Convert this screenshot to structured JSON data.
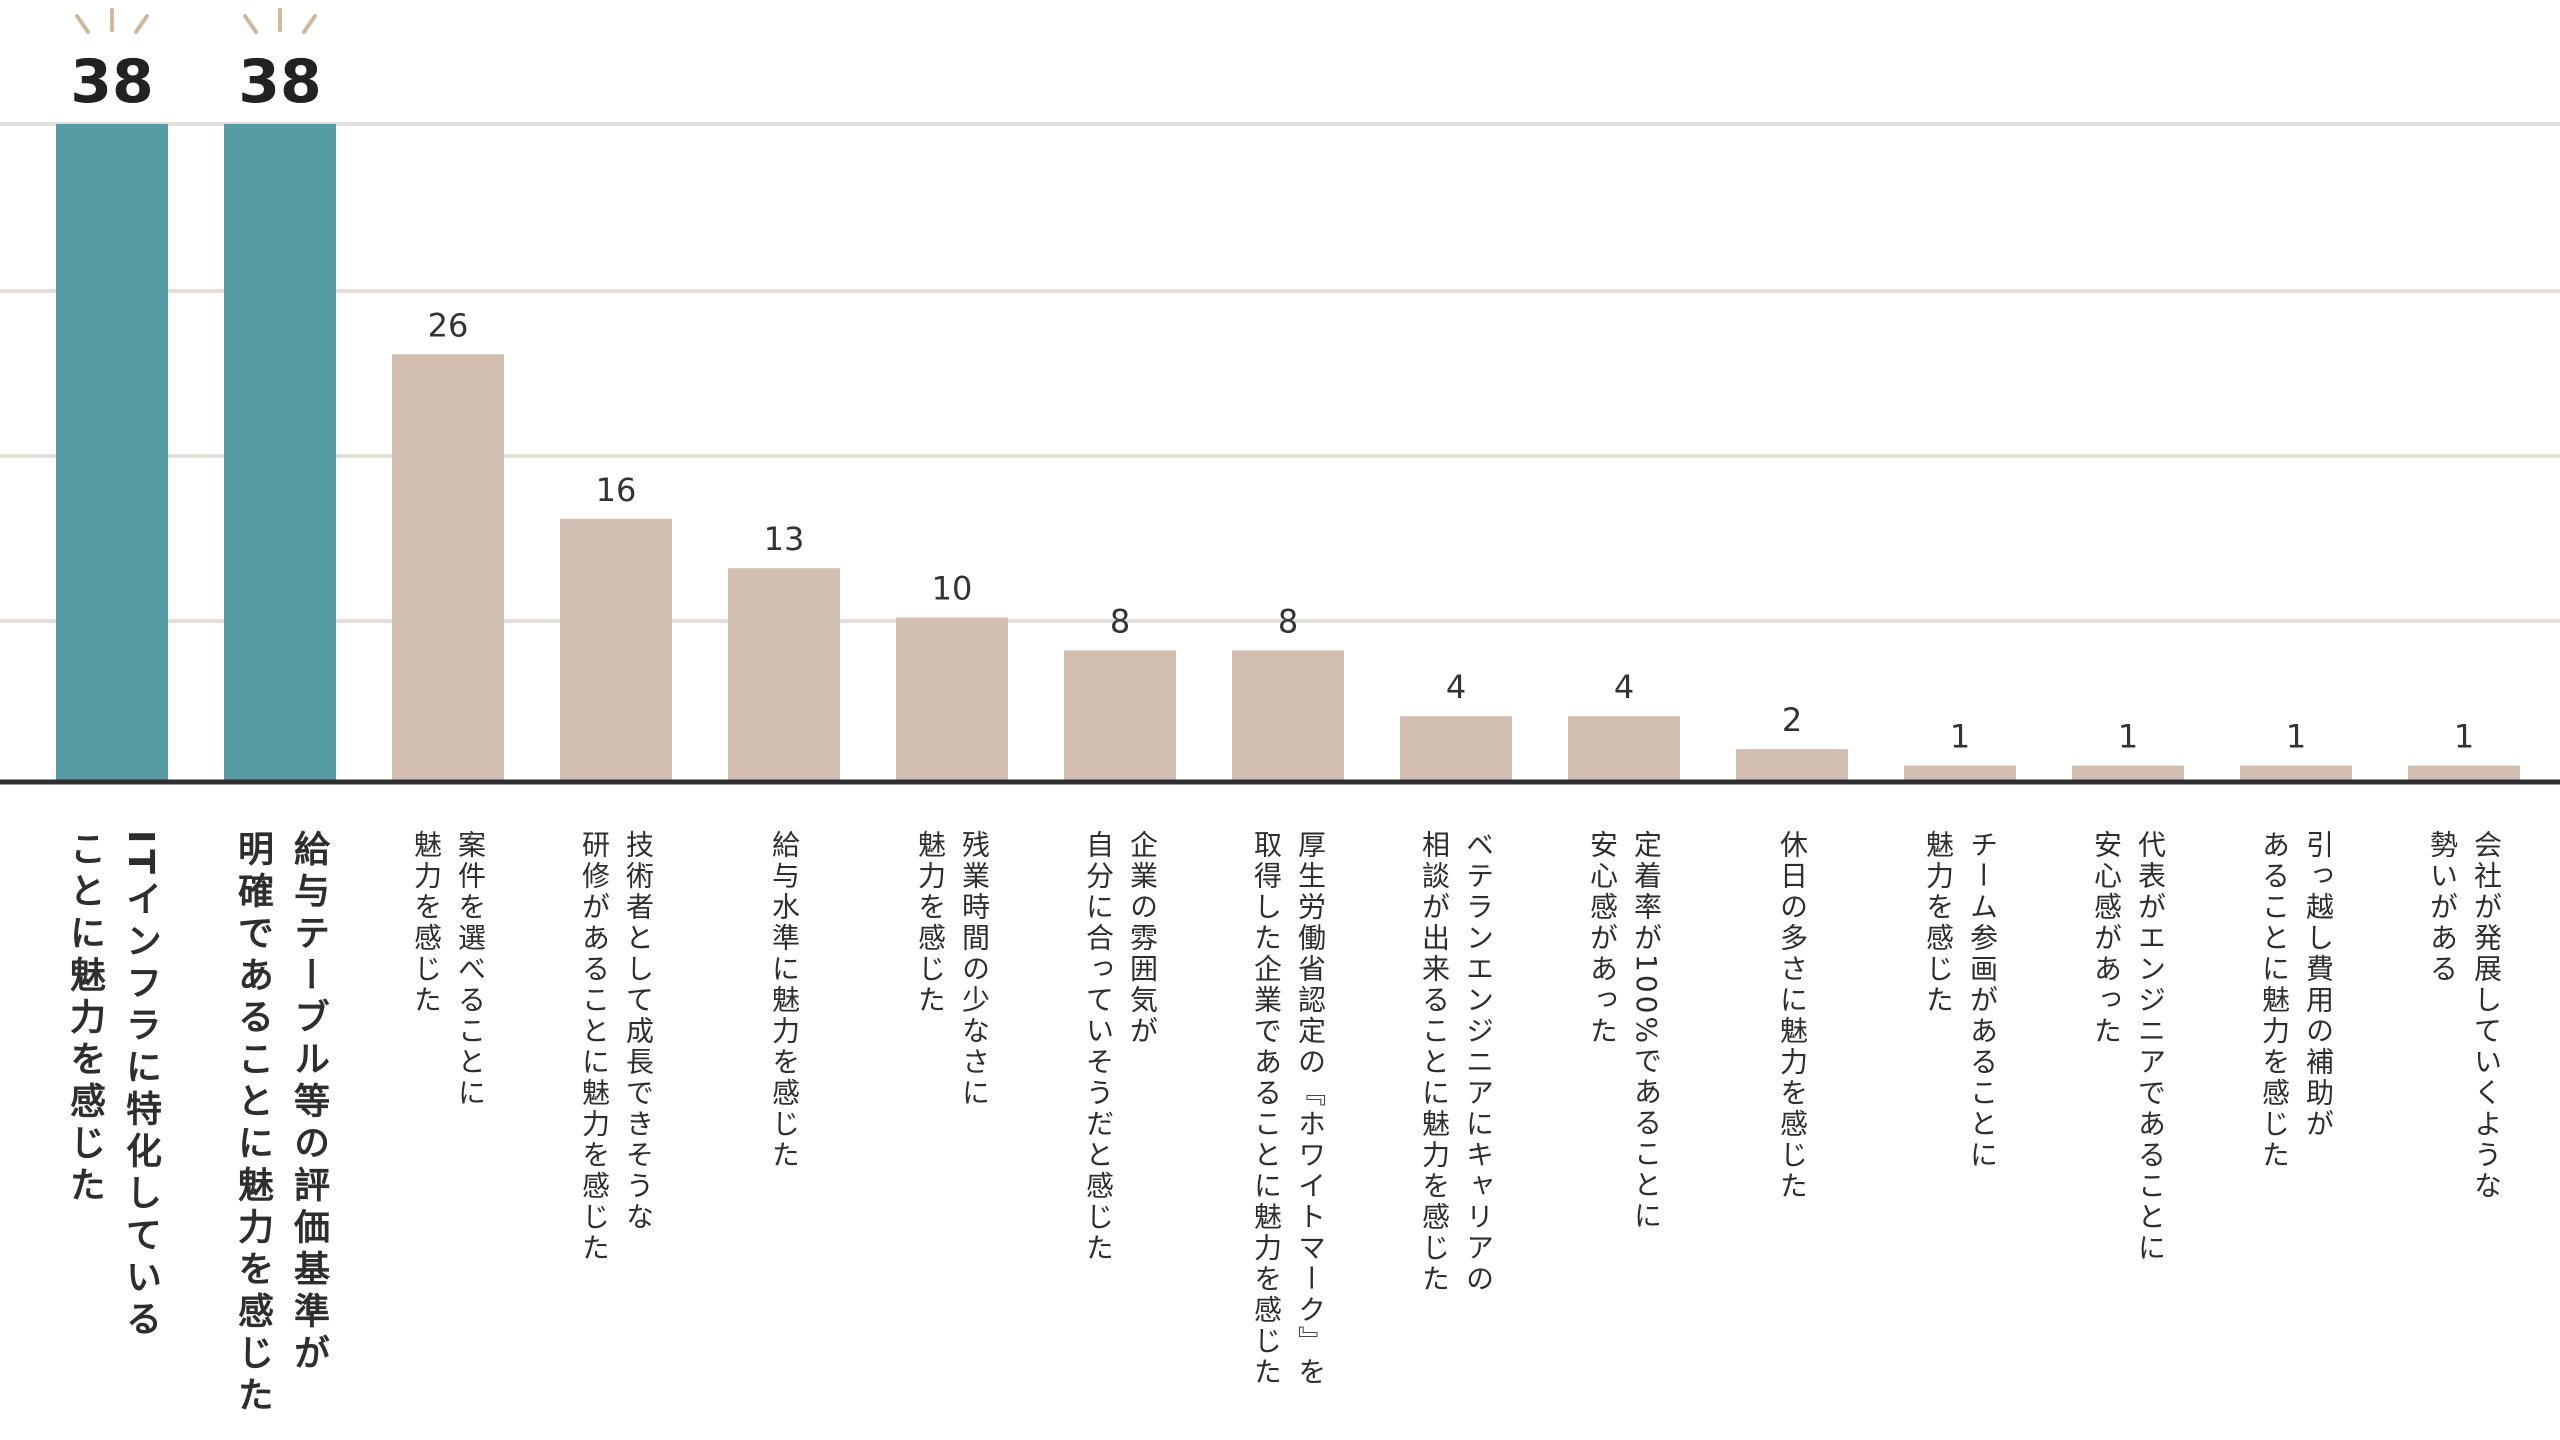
{
  "chart_data": {
    "type": "bar",
    "categories": [
      "ITインフラに特化している\nことに魅力を感じた",
      "給与テーブル等の評価基準が\n明確であることに魅力を感じた",
      "案件を選べることに\n魅力を感じた",
      "技術者として成長できそうな\n研修があることに魅力を感じた",
      "給与水準に魅力を感じた",
      "残業時間の少なさに\n魅力を感じた",
      "企業の雰囲気が\n自分に合っていそうだと感じた",
      "厚生労働省認定の『ホワイトマーク』を\n取得した企業であることに魅力を感じた",
      "ベテランエンジニアにキャリアの\n相談が出来ることに魅力を感じた",
      "定着率が100%であることに\n安心感があった",
      "休日の多さに魅力を感じた",
      "チーム参画があることに\n魅力を感じた",
      "代表がエンジニアであることに\n安心感があった",
      "引っ越し費用の補助が\nあることに魅力を感じた",
      "会社が発展していくような\n勢いがある"
    ],
    "values": [
      38,
      38,
      26,
      16,
      13,
      10,
      8,
      8,
      4,
      4,
      2,
      1,
      1,
      1,
      1
    ],
    "highlight_count": 2,
    "ylim": [
      0,
      40
    ],
    "grid": true,
    "colors": {
      "highlight": "#579ca4",
      "normal": "#d2bfb1",
      "grid": "#e4e0d9",
      "axis": "#2f2f2f",
      "value_text": "#333333",
      "accent_ray": "#cdb79f"
    }
  }
}
